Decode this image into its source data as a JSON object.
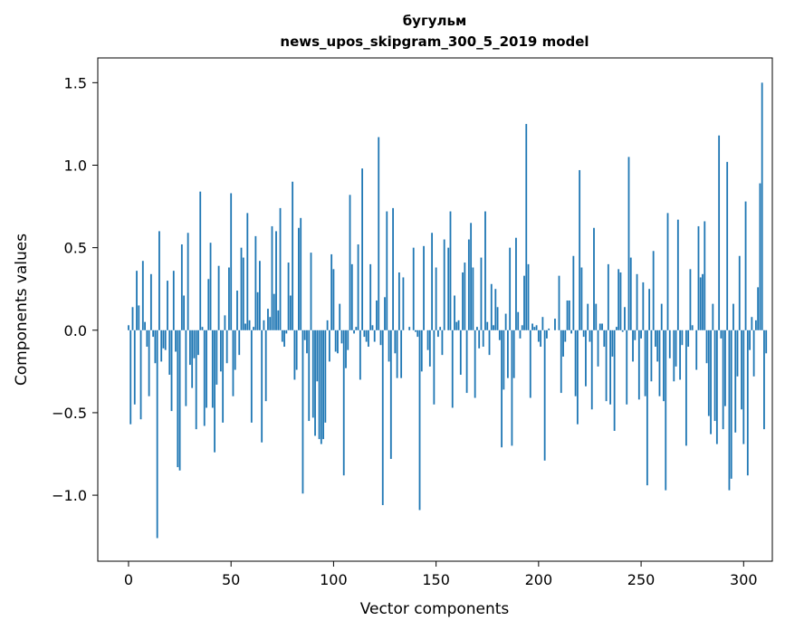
{
  "chart_data": {
    "type": "bar",
    "title": "бугульм",
    "subtitle": "news_upos_skipgram_300_5_2019 model",
    "xlabel": "Vector components",
    "ylabel": "Components values",
    "xlim": [
      -15,
      314
    ],
    "ylim": [
      -1.4,
      1.65
    ],
    "xticks": [
      0,
      50,
      100,
      150,
      200,
      250,
      300
    ],
    "yticks": [
      -1.0,
      -0.5,
      0.0,
      0.5,
      1.0,
      1.5
    ],
    "ytick_labels": [
      "−1.0",
      "−0.5",
      "0.0",
      "0.5",
      "1.0",
      "1.5"
    ],
    "grid": false,
    "bar_color": "#1f77b4",
    "values": [
      0.03,
      -0.57,
      0.14,
      -0.45,
      0.36,
      0.15,
      -0.54,
      0.42,
      0.05,
      -0.1,
      -0.4,
      0.34,
      -0.04,
      -0.2,
      -1.26,
      0.6,
      -0.19,
      -0.11,
      -0.12,
      0.3,
      -0.27,
      -0.49,
      0.36,
      -0.13,
      -0.83,
      -0.85,
      0.52,
      0.21,
      -0.46,
      0.59,
      -0.21,
      -0.35,
      -0.17,
      -0.6,
      -0.15,
      0.84,
      0.02,
      -0.58,
      -0.47,
      0.31,
      0.53,
      -0.47,
      -0.74,
      -0.33,
      0.39,
      -0.25,
      -0.56,
      0.09,
      -0.2,
      0.38,
      0.83,
      -0.4,
      -0.24,
      0.24,
      -0.15,
      0.5,
      0.44,
      0.04,
      0.71,
      0.06,
      -0.56,
      0.02,
      0.57,
      0.23,
      0.42,
      -0.68,
      0.06,
      -0.43,
      0.13,
      0.08,
      0.63,
      0.22,
      0.6,
      0.12,
      0.74,
      -0.07,
      -0.1,
      -0.02,
      0.41,
      0.21,
      0.9,
      -0.3,
      -0.24,
      0.62,
      0.68,
      -0.99,
      -0.06,
      -0.14,
      -0.55,
      0.47,
      -0.53,
      -0.64,
      -0.31,
      -0.66,
      -0.69,
      -0.66,
      -0.56,
      0.06,
      -0.19,
      0.46,
      0.37,
      -0.13,
      -0.14,
      0.16,
      -0.08,
      -0.88,
      -0.23,
      -0.12,
      0.82,
      0.4,
      -0.02,
      0.02,
      0.52,
      -0.3,
      0.98,
      -0.04,
      -0.07,
      -0.1,
      0.4,
      0.03,
      -0.07,
      0.18,
      1.17,
      -0.09,
      -1.06,
      0.2,
      0.72,
      -0.19,
      -0.78,
      0.74,
      -0.14,
      -0.29,
      0.35,
      -0.29,
      0.32,
      0.0,
      0.0,
      0.02,
      0.0,
      0.5,
      -0.01,
      -0.04,
      -1.09,
      -0.25,
      0.51,
      0.0,
      -0.12,
      -0.22,
      0.59,
      -0.45,
      0.38,
      -0.04,
      0.02,
      -0.15,
      0.55,
      0.0,
      0.5,
      0.72,
      -0.47,
      0.21,
      0.05,
      0.06,
      -0.27,
      0.35,
      0.41,
      -0.38,
      0.55,
      0.65,
      0.38,
      -0.41,
      0.02,
      -0.11,
      0.44,
      -0.1,
      0.72,
      0.05,
      -0.15,
      0.28,
      0.03,
      0.25,
      0.14,
      -0.06,
      -0.71,
      -0.36,
      0.1,
      -0.29,
      0.5,
      -0.7,
      -0.29,
      0.56,
      0.11,
      -0.05,
      0.03,
      0.33,
      1.25,
      0.4,
      -0.41,
      0.04,
      0.02,
      0.03,
      -0.07,
      -0.1,
      0.08,
      -0.79,
      -0.05,
      0.01,
      0.0,
      0.0,
      0.07,
      0.0,
      0.33,
      -0.38,
      -0.16,
      -0.07,
      0.18,
      0.18,
      -0.02,
      0.45,
      -0.4,
      -0.57,
      0.97,
      0.38,
      -0.04,
      -0.34,
      0.16,
      -0.07,
      -0.48,
      0.62,
      0.16,
      -0.22,
      0.04,
      0.04,
      -0.1,
      -0.43,
      0.4,
      -0.45,
      -0.16,
      -0.61,
      0.02,
      0.37,
      0.35,
      -0.01,
      0.14,
      -0.45,
      1.05,
      0.44,
      -0.19,
      -0.06,
      0.34,
      -0.42,
      -0.05,
      0.29,
      -0.4,
      -0.94,
      0.25,
      -0.31,
      0.48,
      -0.1,
      -0.19,
      -0.4,
      0.16,
      -0.43,
      -0.97,
      0.71,
      -0.17,
      0.0,
      -0.31,
      -0.22,
      0.67,
      -0.3,
      -0.09,
      0.0,
      -0.7,
      -0.1,
      0.37,
      0.03,
      0.0,
      -0.24,
      0.63,
      0.32,
      0.34,
      0.66,
      -0.2,
      -0.52,
      -0.63,
      0.16,
      -0.55,
      -0.69,
      1.18,
      -0.05,
      -0.6,
      -0.46,
      1.02,
      -0.97,
      -0.9,
      0.16,
      -0.62,
      -0.28,
      0.45,
      -0.48,
      -0.69,
      0.78,
      -0.88,
      -0.12,
      0.08,
      -0.28,
      0.06,
      0.26,
      0.89,
      1.5,
      -0.6,
      -0.14
    ]
  }
}
